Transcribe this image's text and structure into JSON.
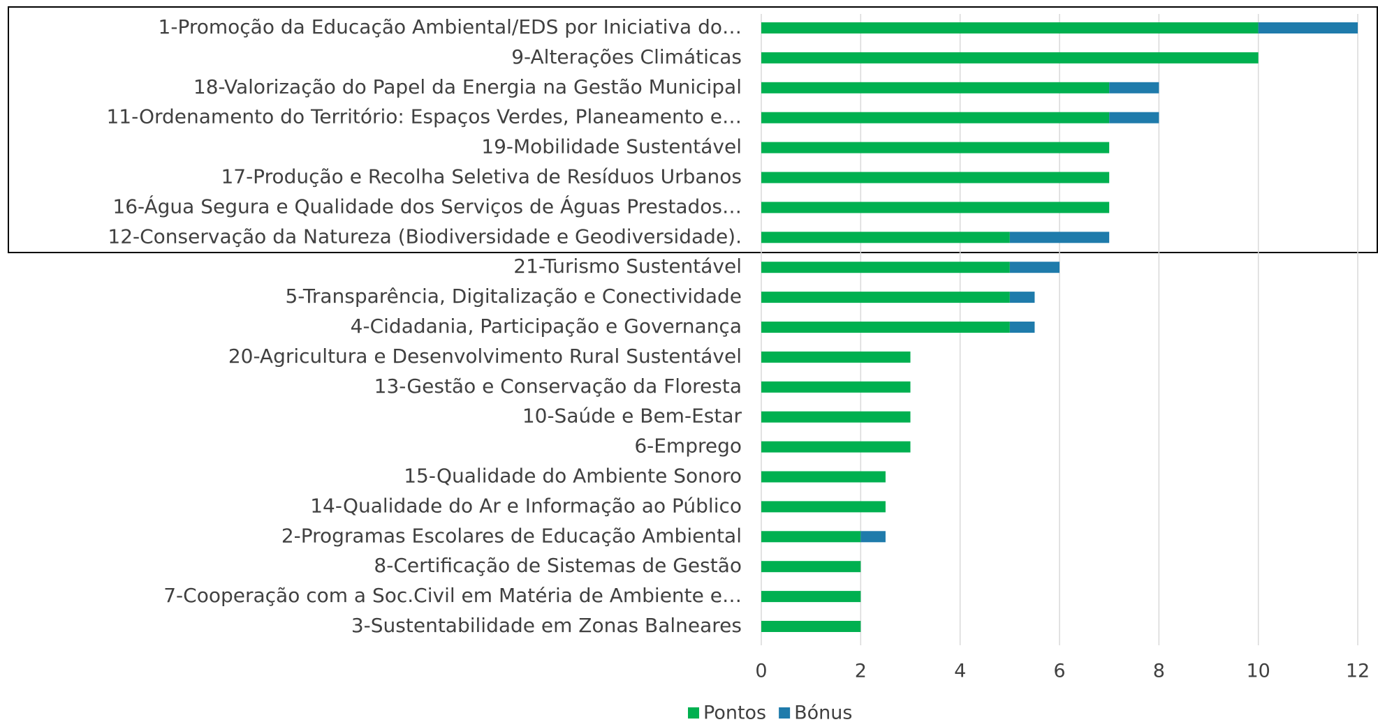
{
  "chart_data": {
    "type": "bar",
    "orientation": "horizontal",
    "stacked": true,
    "categories": [
      "1-Promoção da Educação Ambiental/EDS por Iniciativa do…",
      "9-Alterações Climáticas",
      "18-Valorização do Papel da Energia na Gestão Municipal",
      "11-Ordenamento do Território: Espaços Verdes, Planeamento e…",
      "19-Mobilidade Sustentável",
      "17-Produção e Recolha Seletiva de Resíduos Urbanos",
      "16-Água Segura e Qualidade dos Serviços de Águas Prestados…",
      "12-Conservação da Natureza (Biodiversidade e Geodiversidade).",
      "21-Turismo Sustentável",
      "5-Transparência, Digitalização e Conectividade",
      "4-Cidadania, Participação e Governança",
      "20-Agricultura e Desenvolvimento Rural Sustentável",
      "13-Gestão e Conservação da Floresta",
      "10-Saúde e Bem-Estar",
      "6-Emprego",
      "15-Qualidade do Ambiente Sonoro",
      "14-Qualidade do Ar e Informação ao Público",
      "2-Programas Escolares de Educação Ambiental",
      "8-Certificação de Sistemas de Gestão",
      "7-Cooperação com a Soc.Civil em Matéria de Ambiente e…",
      "3-Sustentabilidade em Zonas Balneares"
    ],
    "series": [
      {
        "name": "Pontos",
        "color": "#00b050",
        "values": [
          10,
          10,
          7,
          7,
          7,
          7,
          7,
          5,
          5,
          5,
          5,
          3,
          3,
          3,
          3,
          2.5,
          2.5,
          2,
          2,
          2,
          2
        ]
      },
      {
        "name": "Bónus",
        "color": "#1f7bab",
        "values": [
          2,
          0,
          1,
          1,
          0,
          0,
          0,
          2,
          1,
          0.5,
          0.5,
          0,
          0,
          0,
          0,
          0,
          0,
          0.5,
          0,
          0,
          0
        ]
      }
    ],
    "xlim": [
      0,
      12
    ],
    "xticks": [
      0,
      2,
      4,
      6,
      8,
      10,
      12
    ],
    "grid": true,
    "legend": "bottom"
  }
}
